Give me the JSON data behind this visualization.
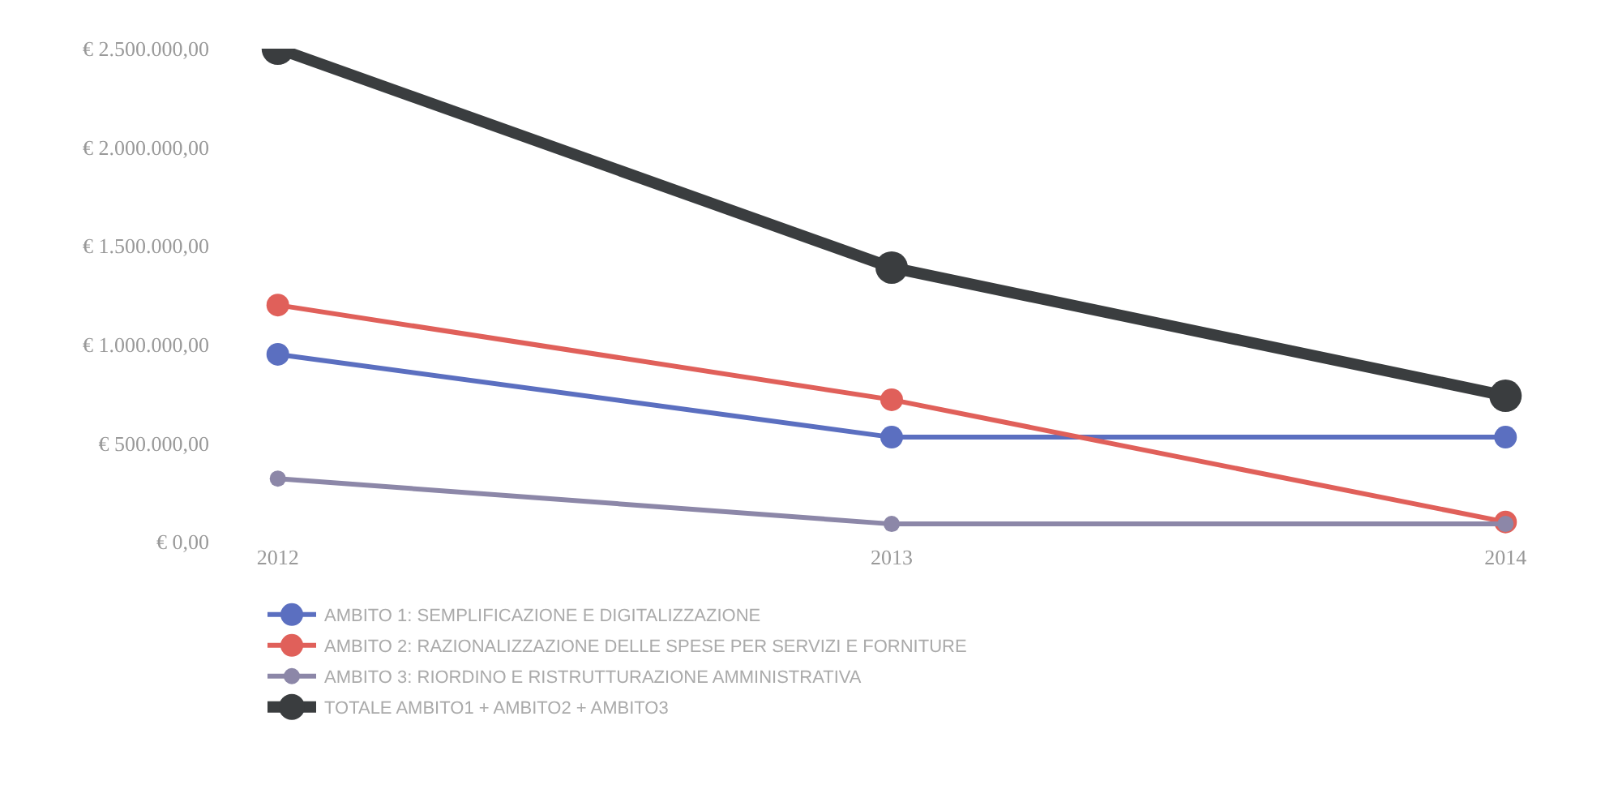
{
  "chart_data": {
    "type": "line",
    "categories": [
      "2012",
      "2013",
      "2014"
    ],
    "series": [
      {
        "name": "AMBITO 1: SEMPLIFICAZIONE E DIGITALIZZAZIONE",
        "color": "#5b6fc0",
        "values": [
          950000,
          530000,
          530000
        ]
      },
      {
        "name": "AMBITO 2: RAZIONALIZZAZIONE DELLE SPESE PER SERVIZI E FORNITURE",
        "color": "#e0605a",
        "values": [
          1200000,
          720000,
          100000
        ]
      },
      {
        "name": "AMBITO 3: RIORDINO E RISTRUTTURAZIONE AMMINISTRATIVA",
        "color": "#8c87a8",
        "values": [
          320000,
          90000,
          90000
        ]
      },
      {
        "name": "TOTALE AMBITO1 + AMBITO2 + AMBITO3",
        "color": "#3a3d3f",
        "values": [
          2500000,
          1390000,
          740000
        ]
      }
    ],
    "ylim": [
      0,
      2500000
    ],
    "yticks": [
      {
        "value": 0,
        "label": "€ 0,00"
      },
      {
        "value": 500000,
        "label": "€ 500.000,00"
      },
      {
        "value": 1000000,
        "label": "€ 1.000.000,00"
      },
      {
        "value": 1500000,
        "label": "€ 1.500.000,00"
      },
      {
        "value": 2000000,
        "label": "€ 2.000.000,00"
      },
      {
        "value": 2500000,
        "label": "€ 2.500.000,00"
      }
    ],
    "grid": false,
    "legend": "bottom",
    "marker": "circle",
    "line_style": "solid"
  }
}
